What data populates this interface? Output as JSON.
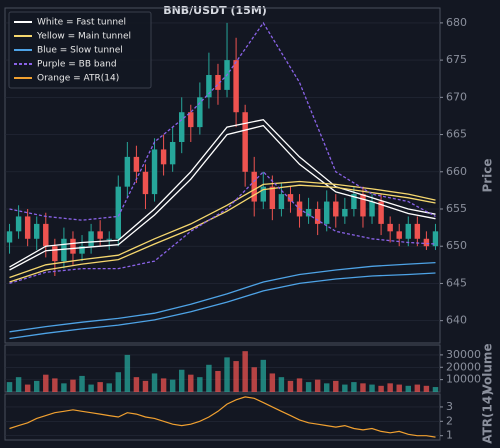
{
  "chart_data": [
    {
      "type": "candlestick",
      "title": "BNB/USDT (15M)",
      "ylabel": "Price",
      "ylim": [
        637,
        682
      ],
      "yticks": [
        640,
        645,
        650,
        655,
        660,
        665,
        670,
        675,
        680
      ],
      "grid": true,
      "up_color": "#26a69a",
      "down_color": "#ef5350",
      "legend": "upper left",
      "open": [
        650.5,
        652,
        654,
        651,
        653,
        650,
        648,
        651,
        649,
        650,
        652,
        651,
        651,
        658,
        662,
        660,
        657,
        663,
        661,
        664,
        668,
        666,
        670,
        673,
        671,
        675,
        668,
        660,
        656,
        658,
        655,
        657,
        656,
        654,
        655,
        653,
        656,
        654,
        655,
        657,
        654,
        656,
        653,
        652,
        651,
        653,
        651,
        650
      ],
      "high": [
        653,
        655.5,
        655,
        654,
        654.5,
        651,
        652.5,
        652,
        651.5,
        653,
        653.5,
        652,
        659.5,
        664,
        663.5,
        661,
        664.5,
        665,
        666,
        670,
        669,
        672,
        676,
        674.5,
        680,
        678,
        669,
        662,
        660,
        659.5,
        658.5,
        658,
        657,
        656.5,
        656,
        657.5,
        657,
        656.5,
        658,
        658,
        657,
        657,
        654,
        653,
        654,
        654,
        652,
        653
      ],
      "low": [
        649,
        651,
        650,
        649.5,
        648.5,
        646,
        647,
        647.5,
        648,
        649,
        650,
        649.5,
        650,
        656.5,
        658.5,
        655,
        656,
        659.5,
        660,
        662.5,
        664,
        665,
        668.5,
        669,
        670,
        666,
        658,
        654,
        655,
        653.5,
        654,
        654.5,
        652.5,
        653,
        651.5,
        652,
        652.5,
        653,
        654,
        652.5,
        653,
        651.5,
        650.5,
        650,
        650,
        650,
        649.5,
        649.5
      ],
      "close": [
        652,
        654,
        651,
        653,
        650,
        648,
        651,
        649,
        650,
        652,
        651,
        651,
        658,
        662,
        660,
        657,
        663,
        661,
        664,
        668,
        666,
        670,
        673,
        671,
        675,
        668,
        660,
        656,
        658,
        655,
        657,
        656,
        654,
        655,
        653,
        656,
        654,
        655,
        657,
        654,
        656,
        653,
        652,
        651,
        653,
        651,
        650,
        652
      ],
      "series": [
        {
          "name": "White = Fast tunnel",
          "color": "#ffffff",
          "dashed": false,
          "x": [
            0,
            4,
            8,
            12,
            16,
            20,
            24,
            28,
            32,
            36,
            40,
            44,
            47
          ],
          "upper": [
            647.2,
            650,
            650.5,
            650.8,
            655,
            660,
            666,
            667,
            662,
            658,
            656.5,
            655,
            654.3
          ],
          "lower": [
            646.8,
            649.4,
            649.8,
            650.2,
            654.2,
            659,
            665,
            666.2,
            661,
            657.3,
            656,
            654.4,
            653.7
          ]
        },
        {
          "name": "Yellow = Main tunnel",
          "color": "#f5d76e",
          "dashed": false,
          "x": [
            0,
            4,
            8,
            12,
            16,
            20,
            24,
            28,
            32,
            36,
            40,
            44,
            47
          ],
          "upper": [
            645.8,
            647.5,
            648.2,
            648.8,
            651,
            653,
            655.5,
            658.3,
            658.7,
            658.3,
            657.7,
            657,
            656.2
          ],
          "lower": [
            645.2,
            646.8,
            647.6,
            648.2,
            650.3,
            652.3,
            654.7,
            657.6,
            658.2,
            657.9,
            657.2,
            656.5,
            655.8
          ]
        },
        {
          "name": "Blue = Slow tunnel",
          "color": "#4ea3e6",
          "dashed": false,
          "x": [
            0,
            4,
            8,
            12,
            16,
            20,
            24,
            28,
            32,
            36,
            40,
            44,
            47
          ],
          "upper": [
            638.5,
            639.2,
            639.8,
            640.3,
            641,
            642.2,
            643.6,
            645.2,
            646.2,
            646.8,
            647.3,
            647.6,
            647.8
          ],
          "lower": [
            637.6,
            638.3,
            638.9,
            639.4,
            640.1,
            641.2,
            642.5,
            644,
            645,
            645.6,
            646,
            646.2,
            646.4
          ]
        },
        {
          "name": "Purple = BB band",
          "color": "#8a63e8",
          "dashed": true,
          "x": [
            0,
            4,
            8,
            12,
            16,
            20,
            24,
            28,
            32,
            36,
            40,
            44,
            47
          ],
          "upper": [
            655,
            654,
            653.5,
            654,
            664,
            668,
            673,
            680,
            672,
            660,
            657,
            656,
            654
          ],
          "lower": [
            645,
            646.5,
            647,
            647,
            648,
            652,
            655,
            660,
            655,
            652,
            651,
            650.5,
            650.3
          ]
        }
      ]
    },
    {
      "type": "bar",
      "ylabel": "Volume",
      "ylim": [
        0,
        38000
      ],
      "yticks": [
        10000,
        20000,
        30000
      ],
      "grid": true,
      "values": [
        8000,
        12000,
        6000,
        9000,
        14000,
        11000,
        7000,
        10000,
        13000,
        6000,
        8000,
        7000,
        16000,
        30000,
        12000,
        9000,
        15000,
        11000,
        10000,
        18000,
        14000,
        12000,
        22000,
        17000,
        28000,
        25000,
        33000,
        20000,
        26000,
        15000,
        12000,
        9000,
        11000,
        8000,
        10000,
        7000,
        9000,
        6000,
        8000,
        7000,
        6000,
        5000,
        7000,
        6000,
        5000,
        6000,
        5000,
        4000
      ]
    },
    {
      "type": "line",
      "ylabel": "ATR(14)",
      "ylim": [
        0.7,
        3.9
      ],
      "yticks": [
        1,
        2,
        3
      ],
      "grid": true,
      "series": [
        {
          "name": "Orange = ATR(14)",
          "color": "#f0a030",
          "values": [
            1.5,
            1.7,
            1.9,
            2.2,
            2.4,
            2.6,
            2.7,
            2.8,
            2.7,
            2.6,
            2.5,
            2.4,
            2.3,
            2.6,
            2.5,
            2.3,
            2.2,
            2.0,
            1.8,
            1.7,
            1.8,
            2.0,
            2.3,
            2.7,
            3.2,
            3.5,
            3.7,
            3.6,
            3.3,
            3.0,
            2.7,
            2.4,
            2.1,
            1.9,
            1.8,
            1.7,
            1.6,
            1.7,
            1.5,
            1.4,
            1.5,
            1.3,
            1.2,
            1.3,
            1.1,
            1.0,
            1.0,
            0.9
          ]
        }
      ]
    }
  ]
}
